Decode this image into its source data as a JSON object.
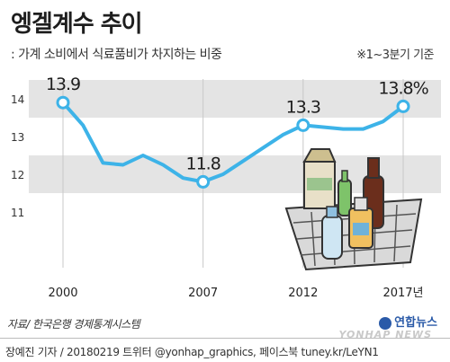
{
  "header": {
    "title": "엥겔계수 추이",
    "subtitle": ": 가계 소비에서 식료품비가 차지하는 비중",
    "note": "※1~3분기 기준"
  },
  "source": "자료/ 한국은행 경제통계시스템",
  "footer": "장예진 기자 / 20180219 트위터 @yonhap_graphics, 페이스북 tuney.kr/LeYN1",
  "logo": "연합뉴스",
  "watermark": "YONHAP NEWS",
  "colors": {
    "line": "#3db3e8",
    "band": "#e4e4e4",
    "grid": "#c8c8c8"
  },
  "chart_data": {
    "type": "line",
    "ylim": [
      10.3,
      14.5
    ],
    "yticks": [
      11,
      12,
      13,
      14
    ],
    "xticks": [
      "2000",
      "2007",
      "2012",
      "2017년"
    ],
    "points": [
      {
        "x": 2000,
        "y": 13.9,
        "label": "13.9",
        "marker": true
      },
      {
        "x": 2001,
        "y": 13.3
      },
      {
        "x": 2002,
        "y": 12.3
      },
      {
        "x": 2003,
        "y": 12.25
      },
      {
        "x": 2004,
        "y": 12.5
      },
      {
        "x": 2005,
        "y": 12.25
      },
      {
        "x": 2006,
        "y": 11.9
      },
      {
        "x": 2007,
        "y": 11.8,
        "label": "11.8",
        "marker": true
      },
      {
        "x": 2008,
        "y": 12.0
      },
      {
        "x": 2009,
        "y": 12.35
      },
      {
        "x": 2010,
        "y": 12.7
      },
      {
        "x": 2011,
        "y": 13.05
      },
      {
        "x": 2012,
        "y": 13.3,
        "label": "13.3",
        "marker": true
      },
      {
        "x": 2013,
        "y": 13.25
      },
      {
        "x": 2014,
        "y": 13.2
      },
      {
        "x": 2015,
        "y": 13.2
      },
      {
        "x": 2016,
        "y": 13.4
      },
      {
        "x": 2017,
        "y": 13.8,
        "label": "13.8%",
        "marker": true
      }
    ]
  }
}
